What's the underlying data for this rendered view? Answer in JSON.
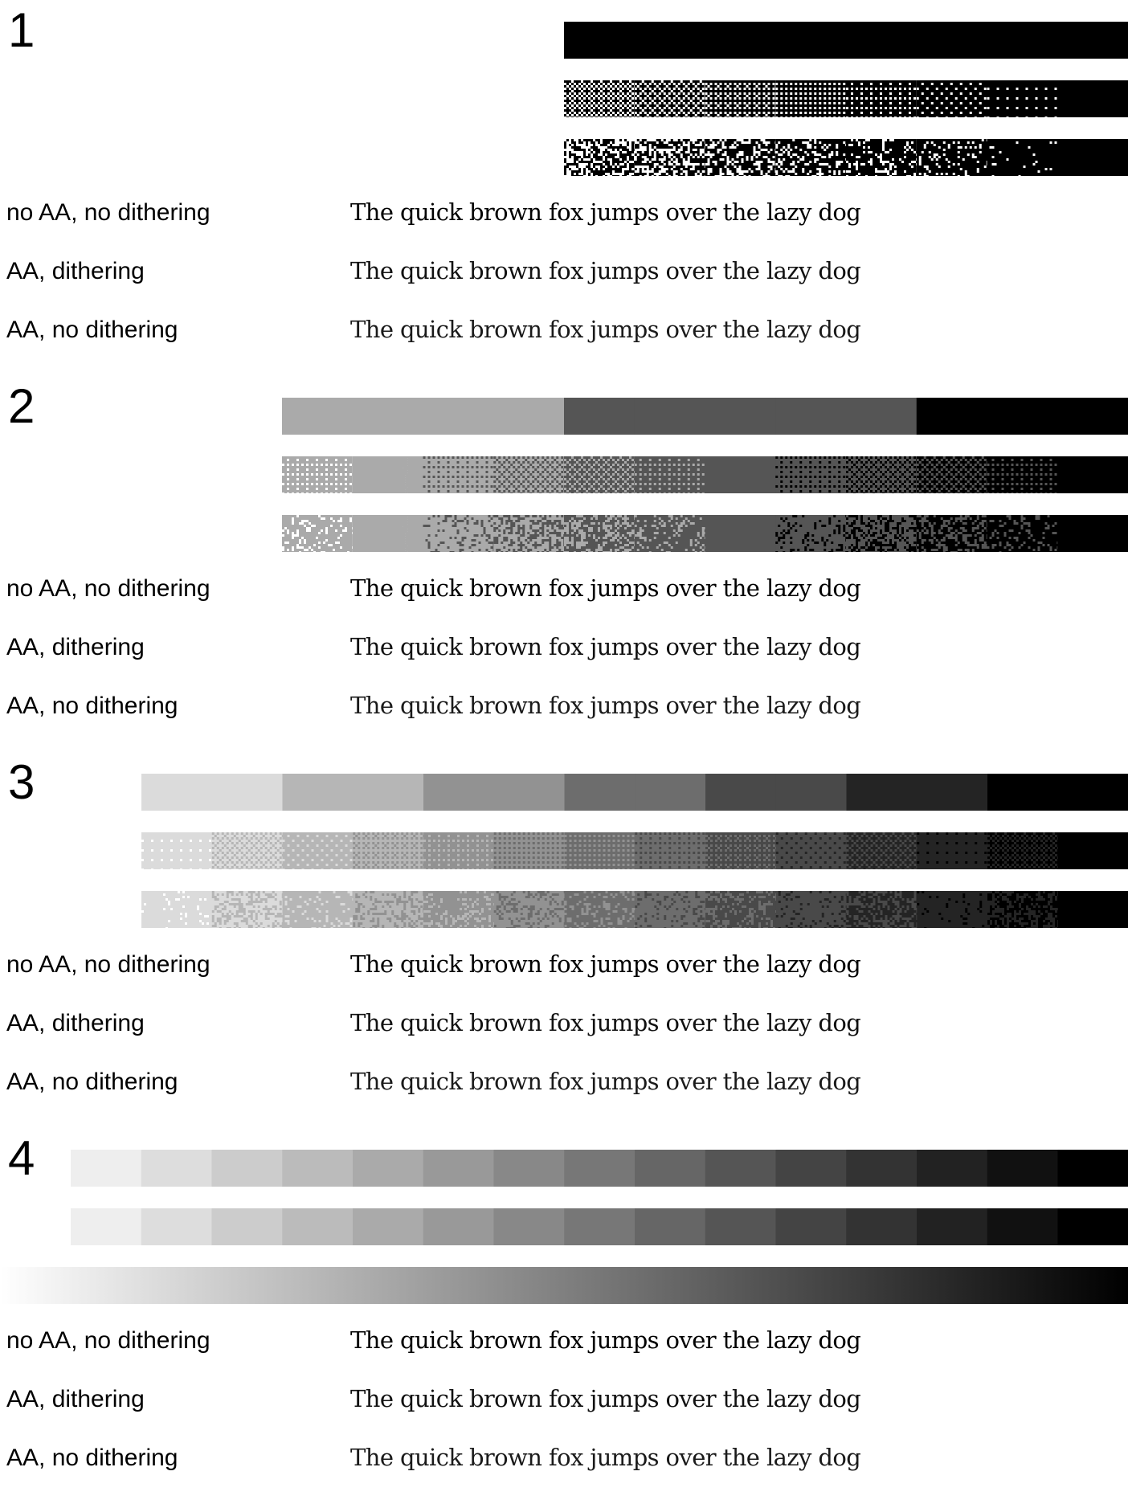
{
  "groups": [
    {
      "number": "1",
      "levels": 2,
      "row_labels": [
        "no AA, no dithering",
        "AA, dithering",
        "AA, no dithering"
      ],
      "sample_text": "The quick brown fox jumps over the lazy dog"
    },
    {
      "number": "2",
      "levels": 4,
      "row_labels": [
        "no AA, no dithering",
        "AA, dithering",
        "AA, no dithering"
      ],
      "sample_text": "The quick brown fox jumps over the lazy dog"
    },
    {
      "number": "3",
      "levels": 8,
      "row_labels": [
        "no AA, no dithering",
        "AA, dithering",
        "AA, no dithering"
      ],
      "sample_text": "The quick brown fox jumps over the lazy dog"
    },
    {
      "number": "4",
      "levels": 16,
      "row_labels": [
        "no AA, no dithering",
        "AA, dithering",
        "AA, no dithering"
      ],
      "sample_text": "The quick brown fox jumps over the lazy dog"
    }
  ],
  "colors": {
    "background": "#ffffff",
    "ink": "#000000"
  }
}
